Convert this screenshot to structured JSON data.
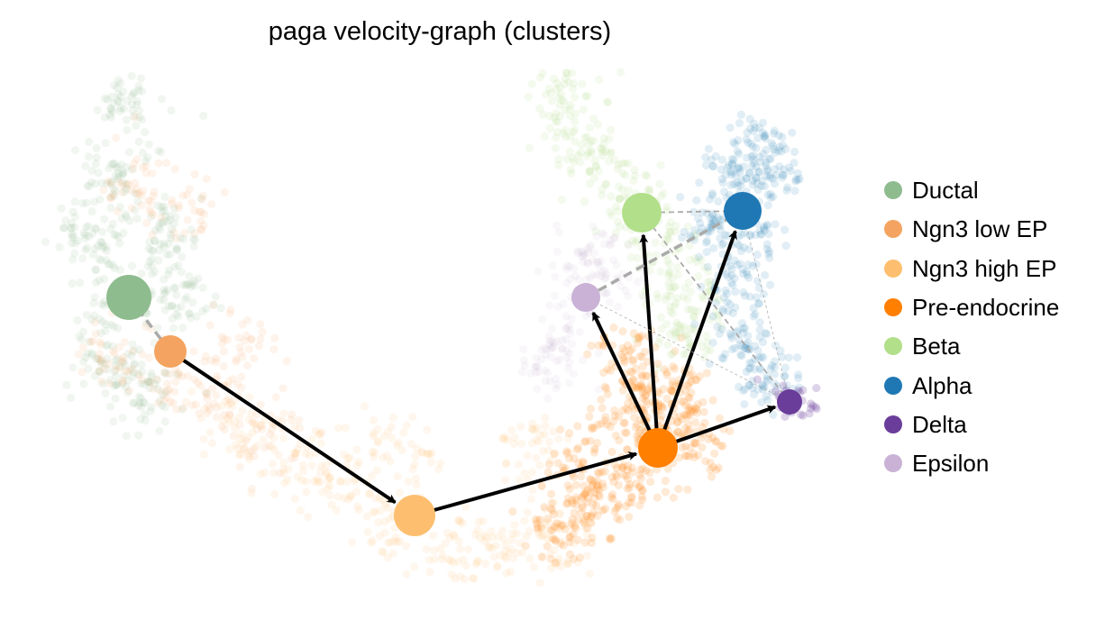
{
  "title": "paga velocity-graph (clusters)",
  "legend_position": "right",
  "clusters": [
    {
      "name": "Ductal",
      "color": "#8fbc8f"
    },
    {
      "name": "Ngn3 low EP",
      "color": "#f4a460"
    },
    {
      "name": "Ngn3 high EP",
      "color": "#fdbf6f"
    },
    {
      "name": "Pre-endocrine",
      "color": "#ff7f00"
    },
    {
      "name": "Beta",
      "color": "#b2df8a"
    },
    {
      "name": "Alpha",
      "color": "#1f78b4"
    },
    {
      "name": "Delta",
      "color": "#6a3d9a"
    },
    {
      "name": "Epsilon",
      "color": "#cab2d6"
    }
  ],
  "edges": [
    {
      "from": "Ngn3 low EP",
      "to": "Ngn3 high EP",
      "type": "directed"
    },
    {
      "from": "Ngn3 high EP",
      "to": "Pre-endocrine",
      "type": "directed"
    },
    {
      "from": "Pre-endocrine",
      "to": "Epsilon",
      "type": "directed"
    },
    {
      "from": "Pre-endocrine",
      "to": "Beta",
      "type": "directed"
    },
    {
      "from": "Pre-endocrine",
      "to": "Alpha",
      "type": "directed"
    },
    {
      "from": "Pre-endocrine",
      "to": "Delta",
      "type": "directed"
    },
    {
      "from": "Ductal",
      "to": "Ngn3 low EP",
      "type": "undirected-strong"
    },
    {
      "from": "Epsilon",
      "to": "Alpha",
      "type": "undirected-strong"
    },
    {
      "from": "Beta",
      "to": "Alpha",
      "type": "undirected-weak"
    },
    {
      "from": "Beta",
      "to": "Delta",
      "type": "undirected-weak"
    },
    {
      "from": "Alpha",
      "to": "Delta",
      "type": "undirected-faint"
    },
    {
      "from": "Epsilon",
      "to": "Delta",
      "type": "undirected-faint"
    }
  ]
}
